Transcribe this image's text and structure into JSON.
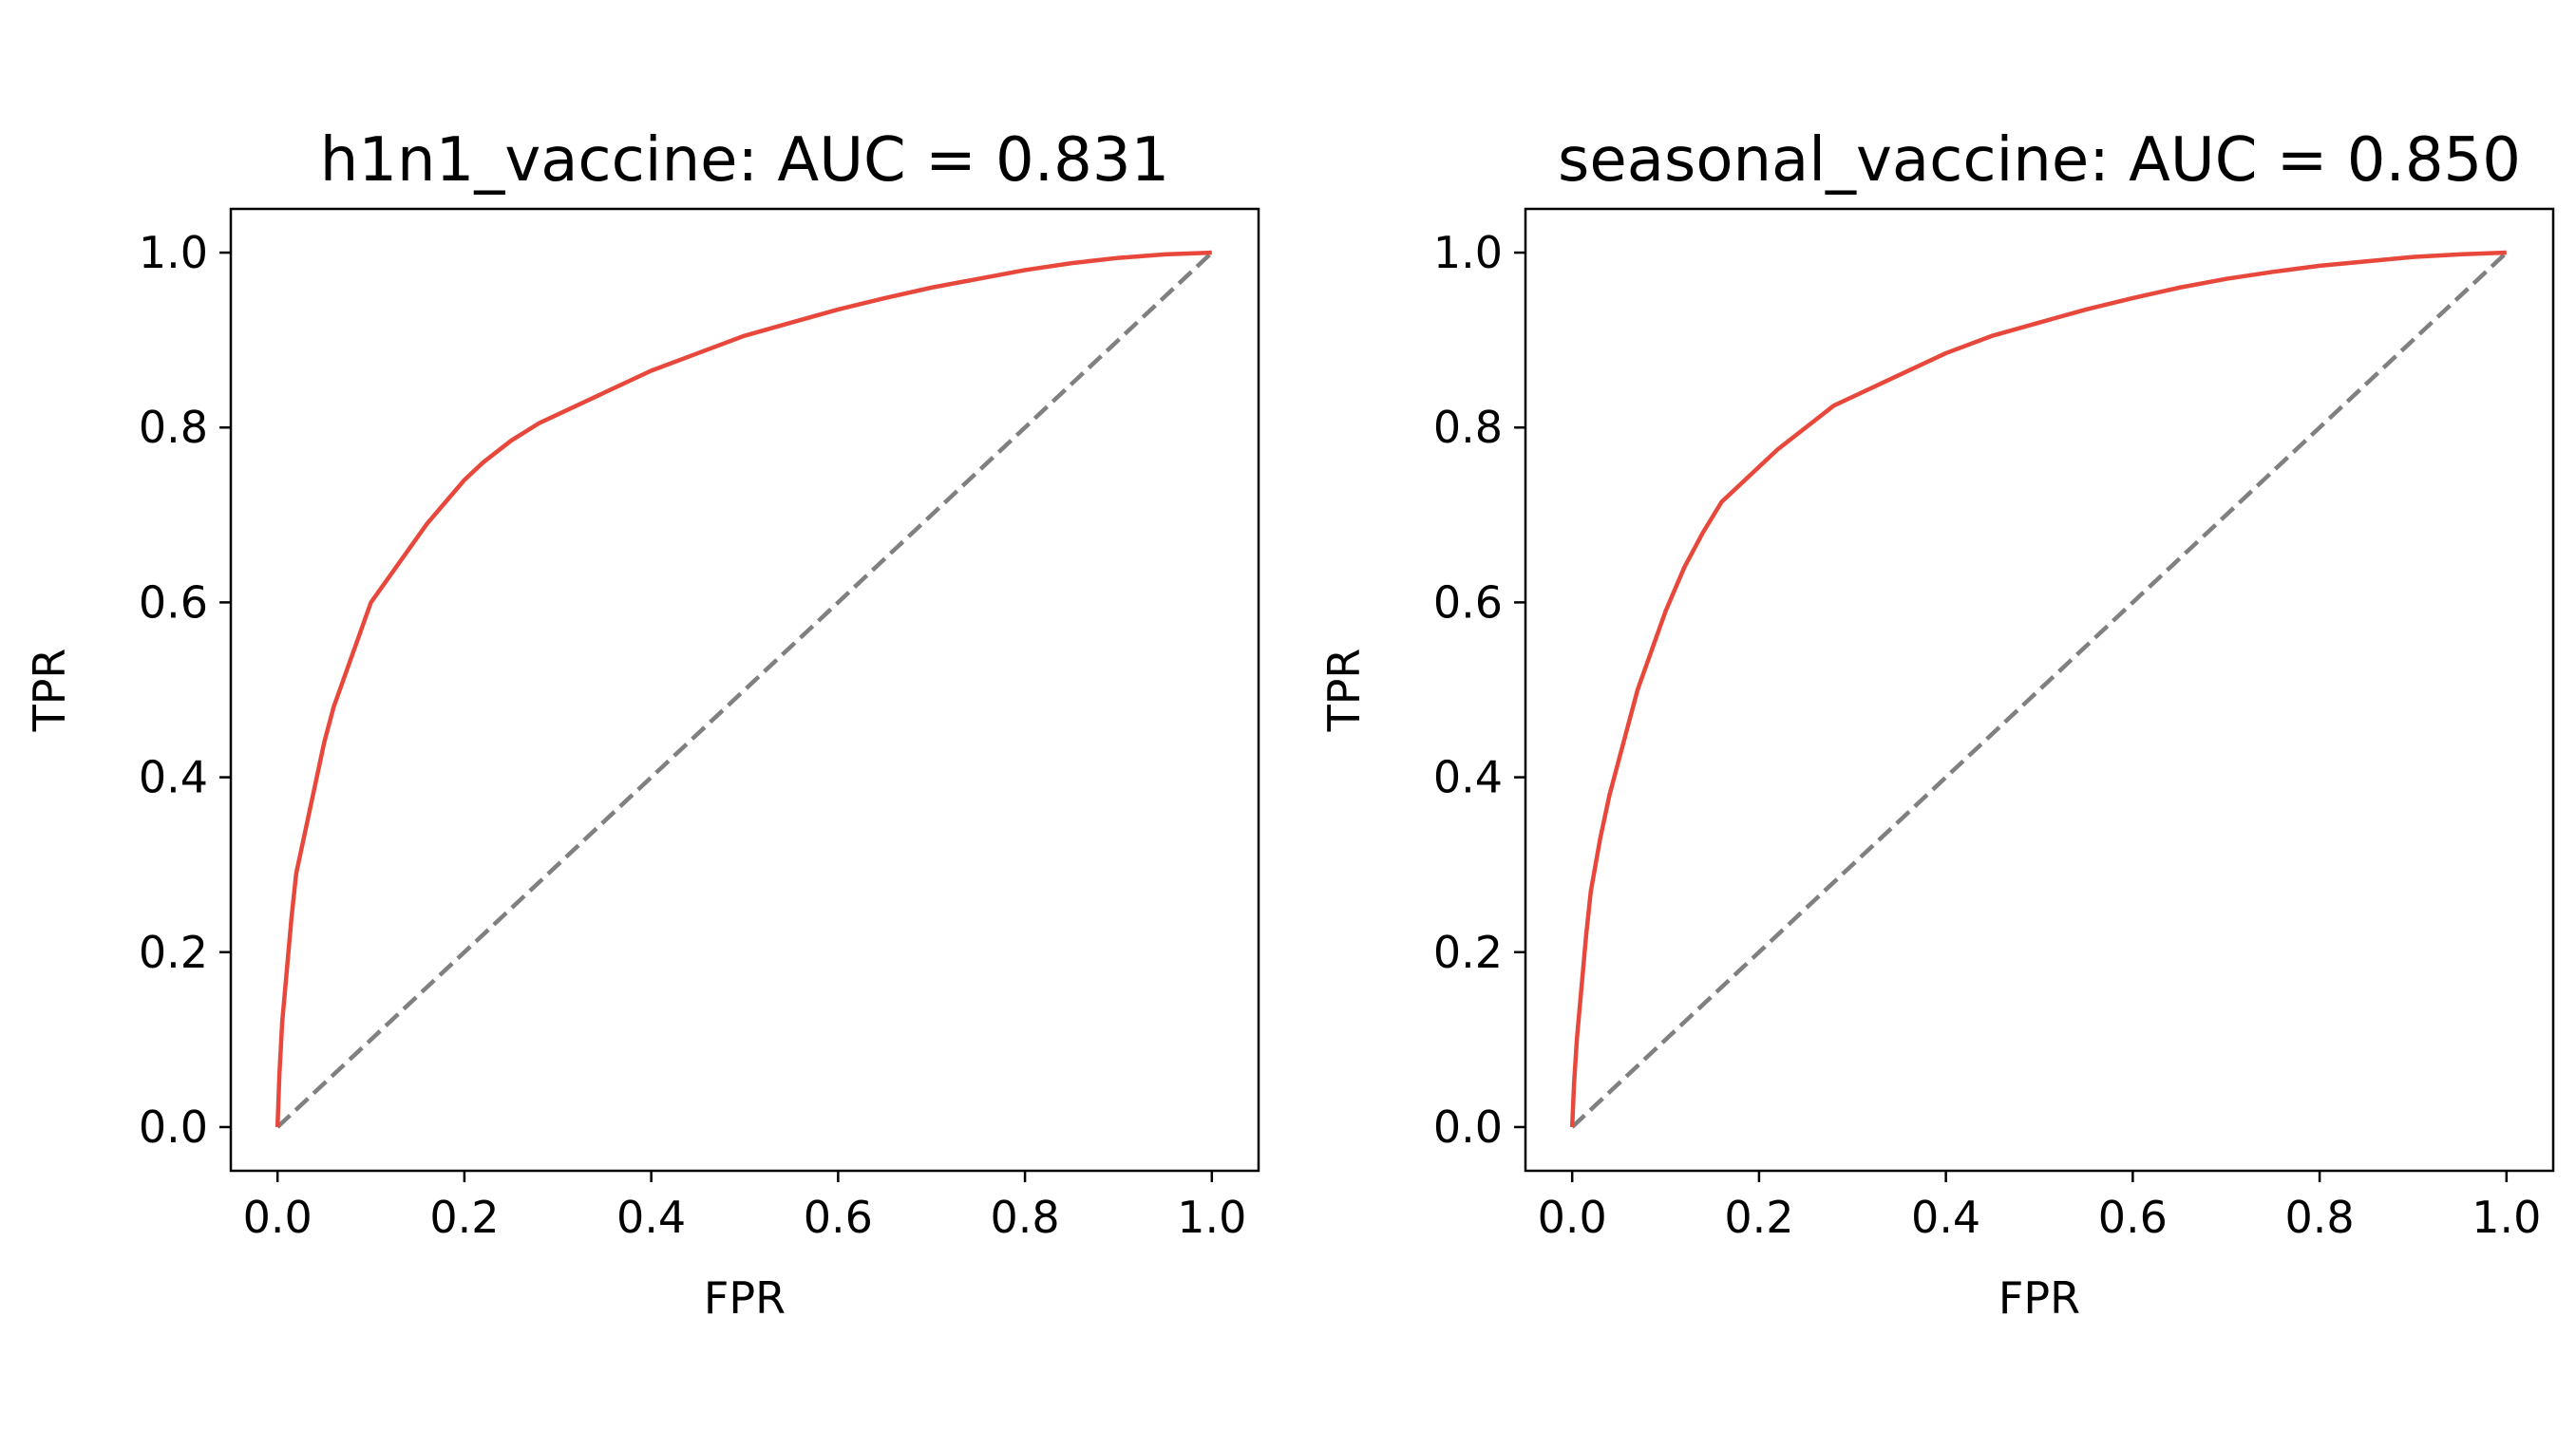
{
  "chart_data": [
    {
      "type": "line",
      "title": "h1n1_vaccine: AUC = 0.831",
      "xlabel": "FPR",
      "ylabel": "TPR",
      "xlim": [
        -0.05,
        1.05
      ],
      "ylim": [
        -0.05,
        1.05
      ],
      "xticks": [
        "0.0",
        "0.2",
        "0.4",
        "0.6",
        "0.8",
        "1.0"
      ],
      "yticks": [
        "0.0",
        "0.2",
        "0.4",
        "0.6",
        "0.8",
        "1.0"
      ],
      "grid": false,
      "series": [
        {
          "role": "roc-curve",
          "color": "#e8483b",
          "x": [
            0.0,
            0.002,
            0.005,
            0.01,
            0.015,
            0.02,
            0.03,
            0.04,
            0.05,
            0.06,
            0.07,
            0.08,
            0.09,
            0.1,
            0.12,
            0.14,
            0.16,
            0.18,
            0.2,
            0.22,
            0.25,
            0.28,
            0.3,
            0.35,
            0.4,
            0.45,
            0.5,
            0.55,
            0.6,
            0.65,
            0.7,
            0.75,
            0.8,
            0.85,
            0.9,
            0.95,
            1.0
          ],
          "y": [
            0.0,
            0.06,
            0.12,
            0.18,
            0.24,
            0.29,
            0.34,
            0.39,
            0.44,
            0.48,
            0.51,
            0.54,
            0.57,
            0.6,
            0.63,
            0.66,
            0.69,
            0.715,
            0.74,
            0.76,
            0.785,
            0.805,
            0.815,
            0.84,
            0.865,
            0.885,
            0.905,
            0.92,
            0.935,
            0.948,
            0.96,
            0.97,
            0.98,
            0.988,
            0.994,
            0.998,
            1.0
          ]
        },
        {
          "role": "chance-line",
          "color": "#808080",
          "dashed": true,
          "x": [
            0.0,
            1.0
          ],
          "y": [
            0.0,
            1.0
          ]
        }
      ]
    },
    {
      "type": "line",
      "title": "seasonal_vaccine: AUC = 0.850",
      "xlabel": "FPR",
      "ylabel": "TPR",
      "xlim": [
        -0.05,
        1.05
      ],
      "ylim": [
        -0.05,
        1.05
      ],
      "xticks": [
        "0.0",
        "0.2",
        "0.4",
        "0.6",
        "0.8",
        "1.0"
      ],
      "yticks": [
        "0.0",
        "0.2",
        "0.4",
        "0.6",
        "0.8",
        "1.0"
      ],
      "grid": false,
      "series": [
        {
          "role": "roc-curve",
          "color": "#e8483b",
          "x": [
            0.0,
            0.002,
            0.005,
            0.01,
            0.015,
            0.02,
            0.03,
            0.04,
            0.05,
            0.06,
            0.07,
            0.08,
            0.09,
            0.1,
            0.12,
            0.14,
            0.16,
            0.18,
            0.2,
            0.22,
            0.25,
            0.28,
            0.3,
            0.35,
            0.4,
            0.45,
            0.5,
            0.55,
            0.6,
            0.65,
            0.7,
            0.75,
            0.8,
            0.85,
            0.9,
            0.95,
            1.0
          ],
          "y": [
            0.0,
            0.05,
            0.1,
            0.16,
            0.22,
            0.27,
            0.33,
            0.38,
            0.42,
            0.46,
            0.5,
            0.53,
            0.56,
            0.59,
            0.64,
            0.68,
            0.715,
            0.735,
            0.755,
            0.775,
            0.8,
            0.825,
            0.835,
            0.86,
            0.885,
            0.905,
            0.92,
            0.935,
            0.948,
            0.96,
            0.97,
            0.978,
            0.985,
            0.99,
            0.995,
            0.998,
            1.0
          ]
        },
        {
          "role": "chance-line",
          "color": "#808080",
          "dashed": true,
          "x": [
            0.0,
            1.0
          ],
          "y": [
            0.0,
            1.0
          ]
        }
      ]
    }
  ]
}
